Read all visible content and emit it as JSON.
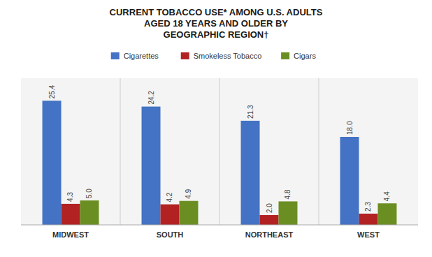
{
  "chart_data": {
    "type": "bar",
    "title": "CURRENT TOBACCO USE* AMONG U.S. ADULTS\nAGED 18 YEARS AND OLDER BY\nGEOGRAPHIC REGION†",
    "categories": [
      "MIDWEST",
      "SOUTH",
      "NORTHEAST",
      "WEST"
    ],
    "series": [
      {
        "name": "Cigarettes",
        "color": "#4472C4",
        "values": [
          25.4,
          24.2,
          21.3,
          18.0
        ],
        "value_labels": [
          "25.4",
          "24.2",
          "21.3",
          "18.0"
        ]
      },
      {
        "name": "Smokeless Tobacco",
        "color": "#B22222",
        "values": [
          4.3,
          4.2,
          2.0,
          2.3
        ],
        "value_labels": [
          "4.3",
          "4.2",
          "2.0",
          "2.3"
        ]
      },
      {
        "name": "Cigars",
        "color": "#6B8E23",
        "values": [
          5.0,
          4.9,
          4.8,
          4.4
        ],
        "value_labels": [
          "5.0",
          "4.9",
          "4.8",
          "4.4"
        ]
      }
    ],
    "ylim": [
      0,
      30
    ],
    "grid": false,
    "legend": "top",
    "data_labels": true,
    "tick_labels": "x"
  }
}
